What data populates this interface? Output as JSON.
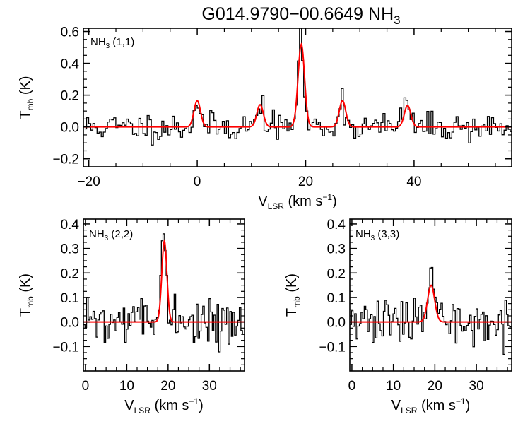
{
  "title": {
    "main": "G014.9790−00.6649 NH",
    "sub": "3"
  },
  "colors": {
    "observed": "#000000",
    "fit": "#ff0000",
    "frame": "#000000",
    "background": "#ffffff"
  },
  "chart_data": [
    {
      "type": "line",
      "id": "nh3-11",
      "label": {
        "main": "NH",
        "sub": "3",
        "suffix": " (1,1)"
      },
      "xlabel": {
        "main": "V",
        "sub": "LSR",
        "suffix": " (km s",
        "sup": "−1",
        "close": ")"
      },
      "ylabel": {
        "main": "T",
        "sub": "mb",
        "suffix": " (K)"
      },
      "xlim": [
        -21,
        58
      ],
      "ylim": [
        -0.25,
        0.62
      ],
      "xticks": [
        -20,
        0,
        20,
        40
      ],
      "xtick_labels": [
        "−20",
        "0",
        "20",
        "40"
      ],
      "yticks": [
        -0.2,
        0.0,
        0.2,
        0.4,
        0.6
      ],
      "ytick_labels": [
        "−0.2",
        "0.0",
        "0.2",
        "0.4",
        "0.6"
      ],
      "series": [
        {
          "role": "observed",
          "style": "steps",
          "x0": -20.6,
          "dx": 0.385,
          "noise_sigma": 0.045,
          "seed": 11,
          "peaks": [
            [
              0.0,
              0.17,
              0.55
            ],
            [
              11.8,
              0.15,
              0.55
            ],
            [
              19.1,
              0.55,
              0.55
            ],
            [
              26.7,
              0.17,
              0.55
            ],
            [
              38.6,
              0.19,
              0.55
            ]
          ]
        },
        {
          "role": "fit",
          "style": "line",
          "x0": -21,
          "dx": 0.1,
          "peaks": [
            [
              0.0,
              0.165,
              0.6
            ],
            [
              11.6,
              0.14,
              0.6
            ],
            [
              19.2,
              0.52,
              0.6
            ],
            [
              26.8,
              0.165,
              0.6
            ],
            [
              38.8,
              0.135,
              0.6
            ]
          ]
        }
      ]
    },
    {
      "type": "line",
      "id": "nh3-22",
      "label": {
        "main": "NH",
        "sub": "3",
        "suffix": " (2,2)"
      },
      "xlabel": {
        "main": "V",
        "sub": "LSR",
        "suffix": " (km s",
        "sup": "−1",
        "close": ")"
      },
      "ylabel": {
        "main": "T",
        "sub": "mb",
        "suffix": " (K)"
      },
      "xlim": [
        -0.5,
        38.5
      ],
      "ylim": [
        -0.2,
        0.42
      ],
      "xticks": [
        0,
        10,
        20,
        30
      ],
      "xtick_labels": [
        "0",
        "10",
        "20",
        "30"
      ],
      "yticks": [
        -0.1,
        0.0,
        0.1,
        0.2,
        0.3,
        0.4
      ],
      "ytick_labels": [
        "−0.1",
        "0.0",
        "0.1",
        "0.2",
        "0.3",
        "0.4"
      ],
      "series": [
        {
          "role": "observed",
          "style": "steps",
          "x0": -0.3,
          "dx": 0.385,
          "noise_sigma": 0.045,
          "seed": 22,
          "peaks": [
            [
              19.0,
              0.34,
              0.6
            ]
          ]
        },
        {
          "role": "fit",
          "style": "line",
          "x0": -0.5,
          "dx": 0.1,
          "peaks": [
            [
              19.1,
              0.33,
              0.62
            ]
          ]
        }
      ]
    },
    {
      "type": "line",
      "id": "nh3-33",
      "label": {
        "main": "NH",
        "sub": "3",
        "suffix": " (3,3)"
      },
      "xlabel": {
        "main": "V",
        "sub": "LSR",
        "suffix": " (km s",
        "sup": "−1",
        "close": ")"
      },
      "ylabel": {
        "main": "T",
        "sub": "mb",
        "suffix": " (K)"
      },
      "xlim": [
        -0.5,
        38.5
      ],
      "ylim": [
        -0.2,
        0.42
      ],
      "xticks": [
        0,
        10,
        20,
        30
      ],
      "xtick_labels": [
        "0",
        "10",
        "20",
        "30"
      ],
      "yticks": [
        -0.1,
        0.0,
        0.1,
        0.2,
        0.3,
        0.4
      ],
      "ytick_labels": [
        "−0.1",
        "0.0",
        "0.1",
        "0.2",
        "0.3",
        "0.4"
      ],
      "series": [
        {
          "role": "observed",
          "style": "steps",
          "x0": -0.3,
          "dx": 0.385,
          "noise_sigma": 0.045,
          "seed": 33,
          "peaks": [
            [
              19.0,
              0.21,
              0.7
            ]
          ]
        },
        {
          "role": "fit",
          "style": "line",
          "x0": -0.5,
          "dx": 0.1,
          "peaks": [
            [
              19.1,
              0.15,
              0.85
            ]
          ]
        }
      ]
    }
  ]
}
